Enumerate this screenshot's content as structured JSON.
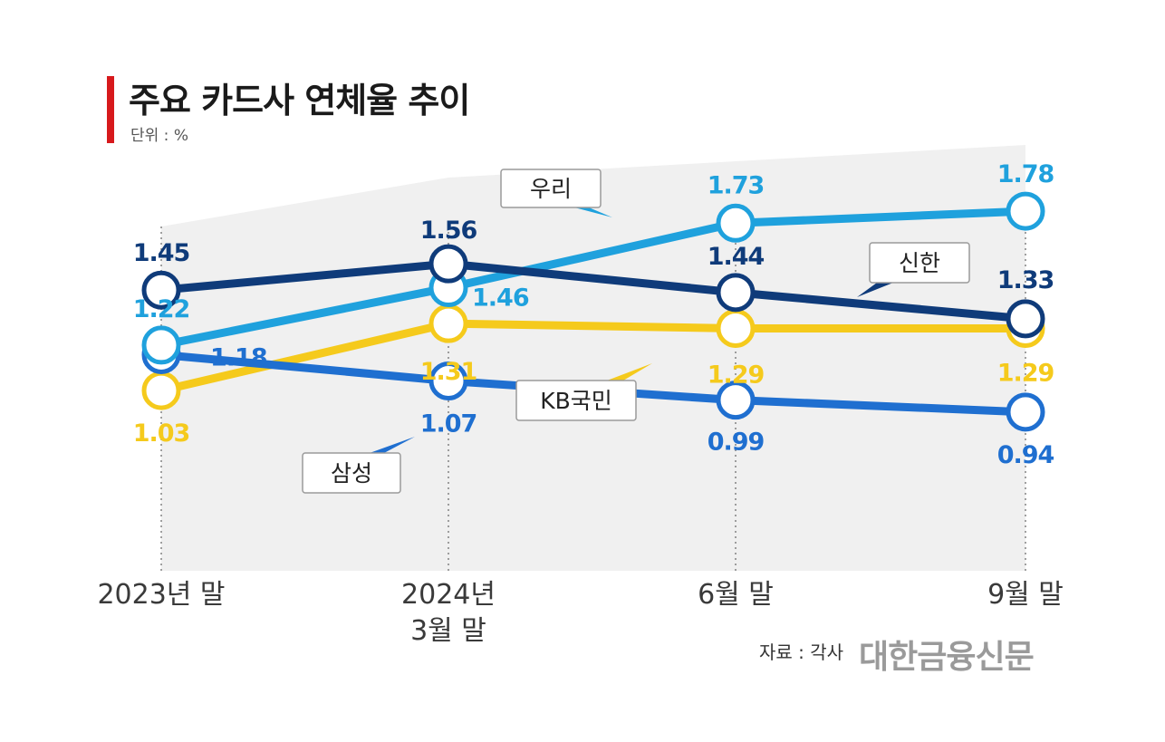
{
  "header": {
    "title": "주요 카드사 연체율 추이",
    "unit": "단위 : %"
  },
  "footer": {
    "source": "자료 : 각사",
    "logo": "대한금융신문"
  },
  "colors": {
    "woori": "#1fa1dd",
    "shinhan": "#0f3b7a",
    "kb": "#f5ca1c",
    "samsung": "#1f6fd0",
    "band": "#f0f0f0",
    "title_accent": "#d7191c"
  },
  "chart_data": {
    "type": "line",
    "title": "주요 카드사 연체율 추이",
    "ylabel": "단위 : %",
    "categories": [
      "2023년 말",
      "2024년 3월 말",
      "6월 말",
      "9월 말"
    ],
    "category_lines": [
      [
        "2023년 말"
      ],
      [
        "2024년",
        "3월  말"
      ],
      [
        "6월  말"
      ],
      [
        "9월  말"
      ]
    ],
    "ylim": [
      0.5,
      2.0
    ],
    "grid": false,
    "series": [
      {
        "key": "woori",
        "name": "우리",
        "values": [
          1.22,
          1.46,
          1.73,
          1.78
        ],
        "labels": [
          "1.22",
          "1.46",
          "1.73",
          "1.78"
        ]
      },
      {
        "key": "shinhan",
        "name": "신한",
        "values": [
          1.45,
          1.56,
          1.44,
          1.33
        ],
        "labels": [
          "1.45",
          "1.56",
          "1.44",
          "1.33"
        ]
      },
      {
        "key": "kb",
        "name": "KB국민",
        "values": [
          1.03,
          1.31,
          1.29,
          1.29
        ],
        "labels": [
          "1.03",
          "1.31",
          "1.29",
          "1.29"
        ]
      },
      {
        "key": "samsung",
        "name": "삼성",
        "values": [
          1.18,
          1.07,
          0.99,
          0.94
        ],
        "labels": [
          "1.18",
          "1.07",
          "0.99",
          "0.94"
        ]
      }
    ]
  }
}
